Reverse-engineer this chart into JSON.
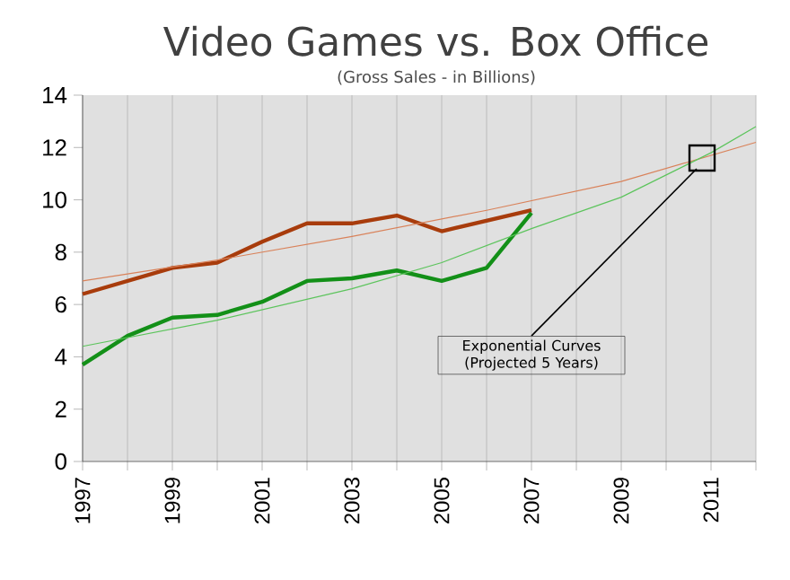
{
  "chart_data": {
    "type": "line",
    "title": "Video Games vs. Box Office",
    "subtitle": "(Gross Sales - in Billions)",
    "x": [
      1997,
      1998,
      1999,
      2000,
      2001,
      2002,
      2003,
      2004,
      2005,
      2006,
      2007
    ],
    "series": [
      {
        "color": "#a83c0c",
        "values": [
          6.4,
          6.9,
          7.4,
          7.6,
          8.4,
          9.1,
          9.1,
          9.4,
          8.8,
          9.2,
          9.6
        ]
      },
      {
        "color": "#139018",
        "values": [
          3.7,
          4.8,
          5.5,
          5.6,
          6.1,
          6.9,
          7.0,
          7.3,
          6.9,
          7.4,
          9.5
        ]
      },
      {
        "color": "#d9825a",
        "x": [
          1997,
          2000,
          2003,
          2006,
          2009,
          2012
        ],
        "values": [
          6.9,
          7.7,
          8.6,
          9.6,
          10.7,
          12.2
        ]
      },
      {
        "color": "#5cc45c",
        "x": [
          1997,
          2000,
          2003,
          2005,
          2007,
          2009,
          2011,
          2012
        ],
        "values": [
          4.4,
          5.4,
          6.6,
          7.6,
          8.9,
          10.1,
          11.8,
          12.8
        ]
      }
    ],
    "xlim": [
      1997,
      2012
    ],
    "ylim": [
      0,
      14
    ],
    "xticks": [
      1997,
      {
        "value": 1998,
        "label": null
      },
      1999,
      {
        "value": 2000,
        "label": null
      },
      2001,
      {
        "value": 2002,
        "label": null
      },
      2003,
      {
        "value": 2004,
        "label": null
      },
      2005,
      {
        "value": 2006,
        "label": null
      },
      2007,
      {
        "value": 2008,
        "label": null
      },
      2009,
      {
        "value": 2010,
        "label": null
      },
      2011,
      {
        "value": 2012,
        "label": null
      }
    ],
    "yticks": [
      0,
      2,
      4,
      6,
      8,
      10,
      12,
      14
    ],
    "grid": "x",
    "marker": "none",
    "line_style": "solid",
    "annotations": [
      {
        "text": "Exponential Curves (Projected 5 Years)",
        "x": 2010.8,
        "y": 11.6
      }
    ]
  }
}
